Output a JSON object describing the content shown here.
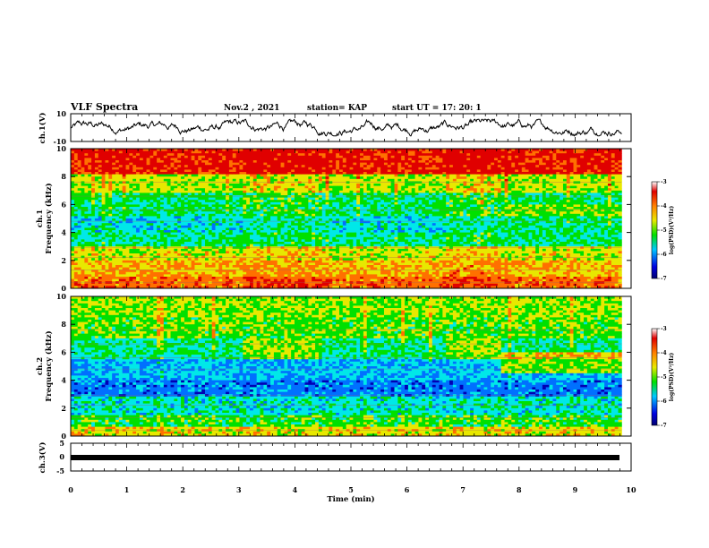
{
  "header": {
    "title": "VLF Spectra",
    "date": "Nov.2 , 2021",
    "station": "station= KAP",
    "start_time": "start UT = 17: 20: 1"
  },
  "colors": {
    "trace": "#000000",
    "cmap": [
      "#0000b4",
      "#0070ff",
      "#00e8e8",
      "#00e000",
      "#e8e800",
      "#ff7000",
      "#e00000",
      "#ffffff"
    ]
  },
  "chart_data": [
    {
      "type": "line",
      "name": "ch1-waveform",
      "ylabel": "ch.1(V)",
      "ylim": [
        -10,
        10
      ],
      "ytick_labels": [
        "10",
        "-10"
      ],
      "xlim": [
        0,
        10
      ],
      "approx_level": 0,
      "approx_swing": 6
    },
    {
      "type": "heatmap",
      "name": "ch1-spectrogram",
      "ylabel_line1": "ch.1",
      "ylabel_line2": "Frequency (kHz)",
      "ylim": [
        0,
        10
      ],
      "ytick_labels": [
        "0",
        "2",
        "4",
        "6",
        "8",
        "10"
      ],
      "xlim": [
        0,
        9.83
      ],
      "color_range": [
        -7,
        -3
      ],
      "colorbar_ticks": [
        "-3",
        "-4",
        "-5",
        "-6",
        "-7"
      ],
      "colorbar_label": "log(PSD)(V²/Hz)",
      "segments_min": [
        0,
        3.1,
        4.5,
        6.7,
        7.65,
        9.83
      ]
    },
    {
      "type": "heatmap",
      "name": "ch2-spectrogram",
      "ylabel_line1": "ch.2",
      "ylabel_line2": "Frequency (kHz)",
      "ylim": [
        0,
        10
      ],
      "ytick_labels": [
        "0",
        "2",
        "4",
        "6",
        "8",
        "10"
      ],
      "xlim": [
        0,
        9.83
      ],
      "color_range": [
        -7,
        -3
      ],
      "colorbar_ticks": [
        "-3",
        "-4",
        "-5",
        "-6",
        "-7"
      ],
      "colorbar_label": "log(PSD)(V²/Hz)",
      "segments_min": [
        0,
        3.1,
        4.5,
        6.7,
        7.65,
        9.83
      ]
    },
    {
      "type": "line",
      "name": "ch3-waveform",
      "ylabel": "ch.3(V)",
      "ylim": [
        -5,
        5
      ],
      "ytick_labels": [
        "5",
        "0",
        "-5"
      ],
      "xlim": [
        0,
        9.83
      ],
      "approx_level": -0.8
    }
  ],
  "xaxis": {
    "label": "Time (min)",
    "range": [
      0,
      10
    ],
    "tick_labels": [
      "0",
      "1",
      "2",
      "3",
      "4",
      "5",
      "6",
      "7",
      "8",
      "9",
      "10"
    ]
  }
}
